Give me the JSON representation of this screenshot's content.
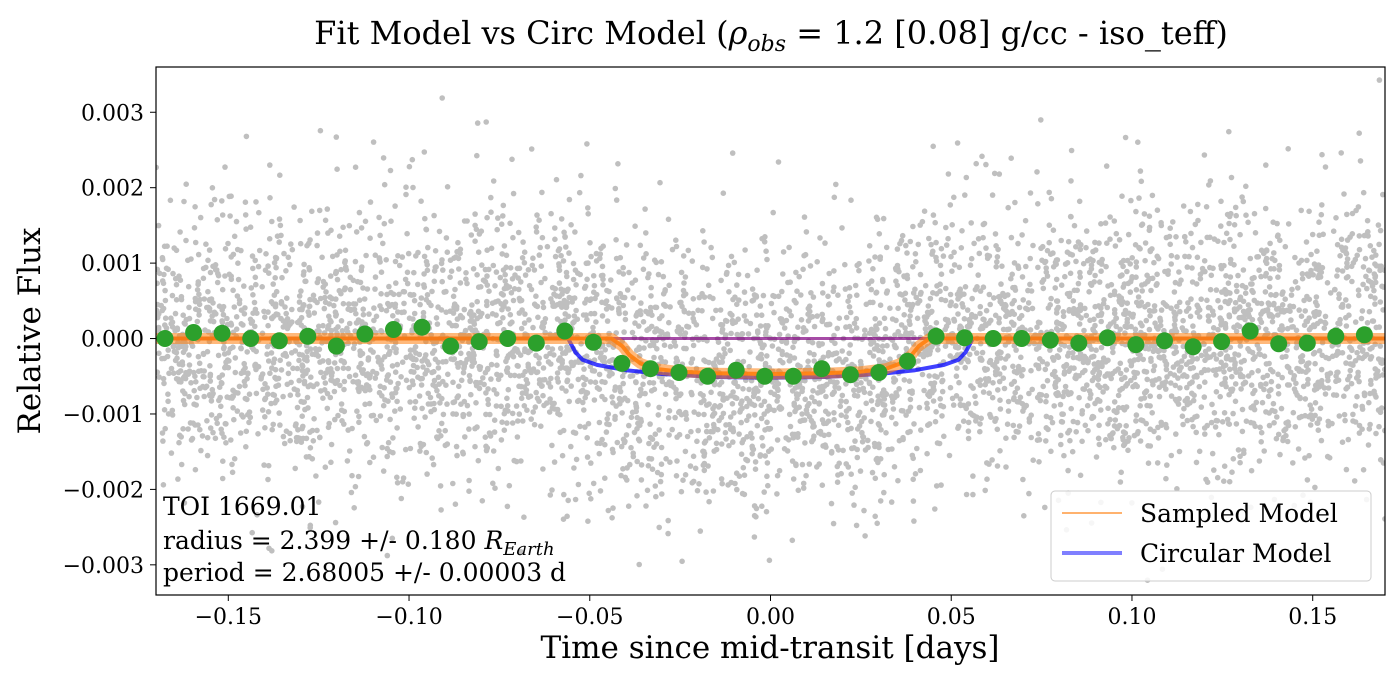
{
  "chart_data": {
    "type": "scatter",
    "title": {
      "prefix": "Fit Model vs Circ Model (",
      "rho_symbol": "ρ",
      "rho_sub": "obs",
      "suffix": " = 1.2 [0.08] g/cc - iso_teff)"
    },
    "xlabel": "Time since mid-transit [days]",
    "ylabel": "Relative Flux",
    "xlim": [
      -0.17,
      0.17
    ],
    "ylim": [
      -0.0034,
      0.0036
    ],
    "x_ticks": [
      -0.15,
      -0.1,
      -0.05,
      0.0,
      0.05,
      0.1,
      0.15
    ],
    "x_tick_labels": [
      "−0.15",
      "−0.10",
      "−0.05",
      "0.00",
      "0.05",
      "0.10",
      "0.15"
    ],
    "y_ticks": [
      -0.003,
      -0.002,
      -0.001,
      0.0,
      0.001,
      0.002,
      0.003
    ],
    "y_tick_labels": [
      "−0.003",
      "−0.002",
      "−0.001",
      "0.000",
      "0.001",
      "0.002",
      "0.003"
    ],
    "grid": false,
    "legend_placement": "lower-right",
    "legend": [
      {
        "label": "Sampled Model",
        "color": "#ff7f0e",
        "style": "thin-line"
      },
      {
        "label": "Circular Model",
        "color": "#0000ff",
        "style": "thick-line"
      }
    ],
    "annotation": {
      "line1": "TOI 1669.01",
      "line2_prefix": "radius = 2.399 +/- 0.180 ",
      "line2_symbol": "R",
      "line2_sub": "Earth",
      "line3": "period = 2.68005 +/- 0.00003 d"
    },
    "colors": {
      "raw_points": "#bfbfbf",
      "binned_points": "#2ca02c",
      "sampled_model": "#ff7f0e",
      "circular_model": "#0000ff",
      "baseline": "#800080"
    },
    "raw_data": {
      "description_of_points": "dense scatter of individual flux measurements",
      "x_range": [
        -0.17,
        0.17
      ],
      "scatter_sigma": 0.0009
    },
    "binned_data": {
      "x": [
        -0.1675,
        -0.1596,
        -0.1517,
        -0.1438,
        -0.1359,
        -0.128,
        -0.1201,
        -0.1122,
        -0.1043,
        -0.0964,
        -0.0885,
        -0.0806,
        -0.0727,
        -0.0648,
        -0.0569,
        -0.049,
        -0.0411,
        -0.0332,
        -0.0253,
        -0.0174,
        -0.0095,
        -0.0016,
        0.0063,
        0.0142,
        0.0221,
        0.03,
        0.0379,
        0.0458,
        0.0537,
        0.0616,
        0.0695,
        0.0774,
        0.0853,
        0.0932,
        0.1011,
        0.109,
        0.1169,
        0.1248,
        0.1327,
        0.1406,
        0.1485,
        0.1564,
        0.1643
      ],
      "y": [
        0.0,
        8e-05,
        7e-05,
        0.0,
        -3e-05,
        3e-05,
        -0.0001,
        6e-05,
        0.00012,
        0.00015,
        -0.0001,
        -4e-05,
        0.0,
        -6e-05,
        0.0001,
        -5e-05,
        -0.00033,
        -0.0004,
        -0.00045,
        -0.0005,
        -0.00042,
        -0.0005,
        -0.0005,
        -0.0004,
        -0.00048,
        -0.00045,
        -0.0003,
        3e-05,
        1e-05,
        0.0,
        0.0,
        -2e-05,
        -6e-05,
        1e-05,
        -8e-05,
        -3e-05,
        -0.00011,
        -4e-05,
        0.0001,
        -7e-05,
        -6e-05,
        3e-05,
        5e-05
      ]
    },
    "sampled_model": {
      "x": [
        -0.17,
        -0.044,
        -0.041,
        -0.039,
        -0.036,
        -0.032,
        -0.025,
        -0.015,
        0.0,
        0.015,
        0.025,
        0.032,
        0.036,
        0.039,
        0.041,
        0.044,
        0.17
      ],
      "y": [
        0.0,
        0.0,
        -0.0001,
        -0.00022,
        -0.00033,
        -0.0004,
        -0.00044,
        -0.00046,
        -0.00047,
        -0.00046,
        -0.00044,
        -0.0004,
        -0.00033,
        -0.00022,
        -0.0001,
        0.0,
        0.0
      ]
    },
    "circular_model": {
      "x": [
        -0.17,
        -0.056,
        -0.054,
        -0.052,
        -0.048,
        -0.04,
        -0.03,
        -0.015,
        0.0,
        0.015,
        0.03,
        0.04,
        0.048,
        0.052,
        0.054,
        0.056,
        0.17
      ],
      "y": [
        0.0,
        0.0,
        -0.00018,
        -0.00028,
        -0.00035,
        -0.00042,
        -0.00047,
        -0.00051,
        -0.00052,
        -0.00051,
        -0.00047,
        -0.00042,
        -0.00035,
        -0.00028,
        -0.00018,
        0.0,
        0.0
      ]
    }
  }
}
